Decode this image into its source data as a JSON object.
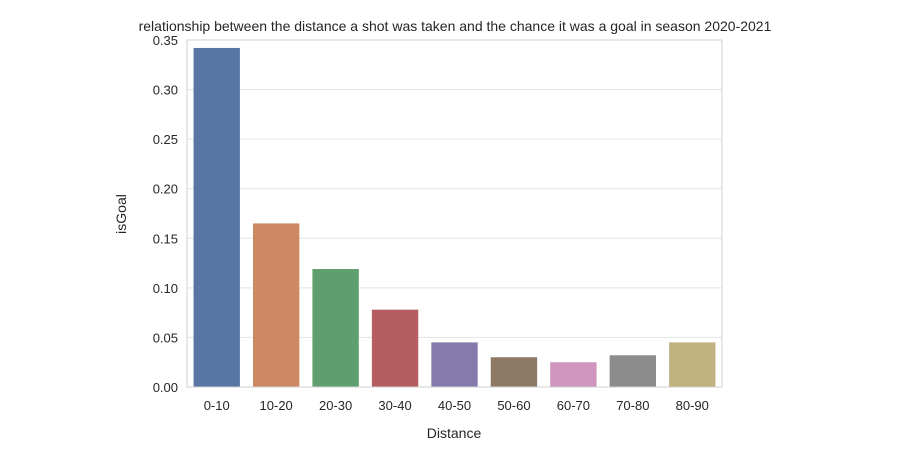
{
  "chart_data": {
    "type": "bar",
    "title": "relationship between the distance a shot was taken and the chance it was a goal in season 2020-2021",
    "xlabel": "Distance",
    "ylabel": "isGoal",
    "categories": [
      "0-10",
      "10-20",
      "20-30",
      "30-40",
      "40-50",
      "50-60",
      "60-70",
      "70-80",
      "80-90"
    ],
    "values": [
      0.342,
      0.165,
      0.119,
      0.078,
      0.045,
      0.03,
      0.025,
      0.032,
      0.045
    ],
    "colors": [
      "#5875a4",
      "#cc8963",
      "#5f9e6e",
      "#b55d60",
      "#857aab",
      "#8d7866",
      "#d095bf",
      "#8c8c8c",
      "#c1b37f"
    ],
    "ylim": [
      0,
      0.35
    ],
    "yticks": [
      0.0,
      0.05,
      0.1,
      0.15,
      0.2,
      0.25,
      0.3,
      0.35
    ],
    "ytick_labels": [
      "0.00",
      "0.05",
      "0.10",
      "0.15",
      "0.20",
      "0.25",
      "0.30",
      "0.35"
    ],
    "grid": "horizontal"
  }
}
